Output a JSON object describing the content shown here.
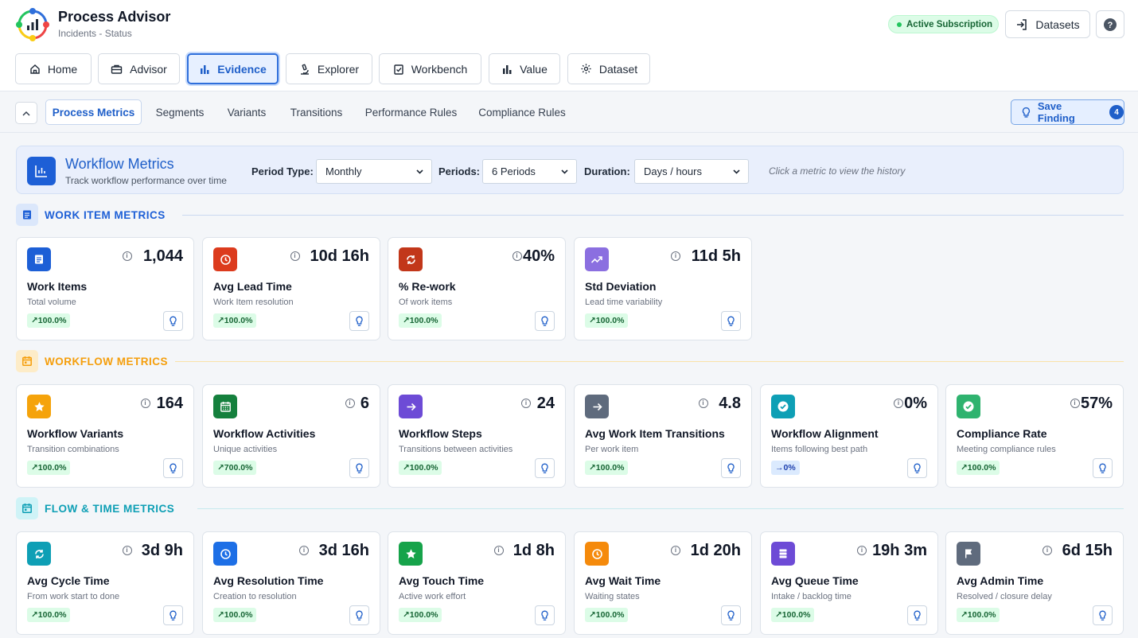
{
  "app": {
    "title": "Process Advisor",
    "subtitle": "Incidents - Status"
  },
  "header": {
    "subscription": "Active Subscription",
    "datasets_label": "Datasets"
  },
  "nav": [
    {
      "label": "Home",
      "icon": "home-icon"
    },
    {
      "label": "Advisor",
      "icon": "briefcase-icon"
    },
    {
      "label": "Evidence",
      "icon": "bar-chart-icon",
      "active": true
    },
    {
      "label": "Explorer",
      "icon": "microscope-icon"
    },
    {
      "label": "Workbench",
      "icon": "clipboard-check-icon"
    },
    {
      "label": "Value",
      "icon": "bar-chart-icon"
    },
    {
      "label": "Dataset",
      "icon": "gear-icon"
    }
  ],
  "tabs": [
    {
      "label": "Process Metrics",
      "active": true
    },
    {
      "label": "Segments"
    },
    {
      "label": "Variants"
    },
    {
      "label": "Transitions"
    },
    {
      "label": "Performance Rules"
    },
    {
      "label": "Compliance Rules"
    }
  ],
  "save_finding": {
    "label": "Save Finding",
    "count": "4"
  },
  "panel": {
    "title": "Workflow Metrics",
    "subtitle": "Track workflow performance over time",
    "period_type_label": "Period Type:",
    "period_type_value": "Monthly",
    "periods_label": "Periods:",
    "periods_value": "6 Periods",
    "duration_label": "Duration:",
    "duration_value": "Days / hours",
    "hint": "Click a metric to view the history"
  },
  "sections": [
    {
      "title": "WORK ITEM METRICS",
      "color": "#1d5fd6",
      "cards": [
        {
          "name": "Work Items",
          "desc": "Total volume",
          "value": "1,044",
          "change": "↗100.0%",
          "icon": "document-icon",
          "color": "#1d5fd6"
        },
        {
          "name": "Avg Lead Time",
          "desc": "Work Item resolution",
          "value": "10d 16h",
          "change": "↗100.0%",
          "icon": "clock-icon",
          "color": "#dc3b1d"
        },
        {
          "name": "% Re-work",
          "desc": "Of work items",
          "value": "40%",
          "change": "↗100.0%",
          "icon": "refresh-icon",
          "color": "#c2371a"
        },
        {
          "name": "Std Deviation",
          "desc": "Lead time variability",
          "value": "11d 5h",
          "change": "↗100.0%",
          "icon": "trend-up-icon",
          "color": "#8b6fe0"
        }
      ]
    },
    {
      "title": "WORKFLOW METRICS",
      "color": "#f59e0b",
      "cards": [
        {
          "name": "Workflow Variants",
          "desc": "Transition combinations",
          "value": "164",
          "change": "↗100.0%",
          "icon": "star-icon",
          "color": "#f5a30b"
        },
        {
          "name": "Workflow Activities",
          "desc": "Unique activities",
          "value": "6",
          "change": "↗700.0%",
          "icon": "calendar-grid-icon",
          "color": "#15803d"
        },
        {
          "name": "Workflow Steps",
          "desc": "Transitions between activities",
          "value": "24",
          "change": "↗100.0%",
          "icon": "arrow-right-icon",
          "color": "#6d4bd6"
        },
        {
          "name": "Avg Work Item Transitions",
          "desc": "Per work item",
          "value": "4.8",
          "change": "↗100.0%",
          "icon": "arrow-right-icon",
          "color": "#5f6b7d"
        },
        {
          "name": "Workflow Alignment",
          "desc": "Items following best path",
          "value": "0%",
          "change": "→0%",
          "neutral": true,
          "icon": "check-circle-icon",
          "color": "#0e9fb5"
        },
        {
          "name": "Compliance Rate",
          "desc": "Meeting compliance rules",
          "value": "57%",
          "change": "↗100.0%",
          "icon": "check-circle-icon",
          "color": "#2fb36f"
        }
      ]
    },
    {
      "title": "FLOW & TIME METRICS",
      "color": "#0e9fb5",
      "cards": [
        {
          "name": "Avg Cycle Time",
          "desc": "From work start to done",
          "value": "3d 9h",
          "change": "↗100.0%",
          "icon": "refresh-icon",
          "color": "#0e9fb5"
        },
        {
          "name": "Avg Resolution Time",
          "desc": "Creation to resolution",
          "value": "3d 16h",
          "change": "↗100.0%",
          "icon": "clock-icon",
          "color": "#1d6fe6"
        },
        {
          "name": "Avg Touch Time",
          "desc": "Active work effort",
          "value": "1d 8h",
          "change": "↗100.0%",
          "icon": "star-icon",
          "color": "#16a34a"
        },
        {
          "name": "Avg Wait Time",
          "desc": "Waiting states",
          "value": "1d 20h",
          "change": "↗100.0%",
          "icon": "clock-icon",
          "color": "#f58a0b"
        },
        {
          "name": "Avg Queue Time",
          "desc": "Intake / backlog time",
          "value": "19h 3m",
          "change": "↗100.0%",
          "icon": "list-icon",
          "color": "#6d4bd6"
        },
        {
          "name": "Avg Admin Time",
          "desc": "Resolved / closure delay",
          "value": "6d 15h",
          "change": "↗100.0%",
          "icon": "flag-icon",
          "color": "#5f6b7d"
        }
      ]
    }
  ]
}
